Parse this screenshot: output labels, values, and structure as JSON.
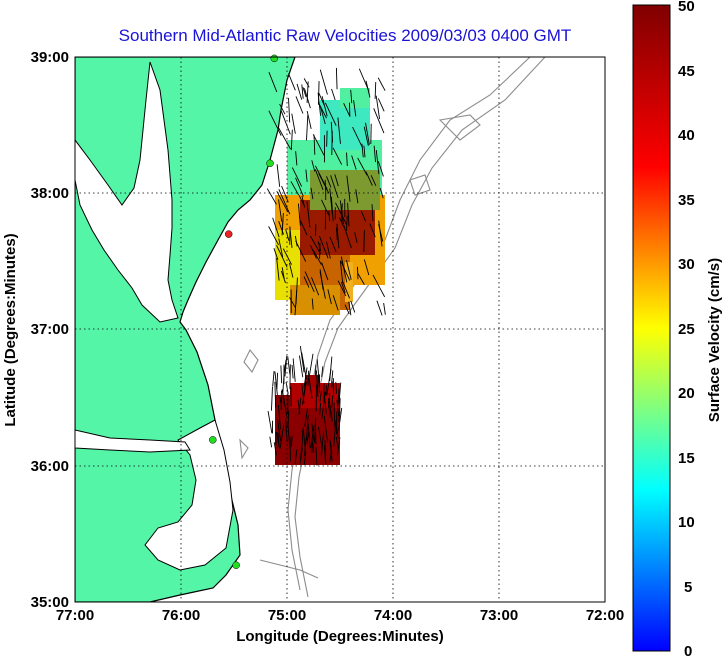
{
  "title": "Southern Mid-Atlantic Raw Velocities 2009/03/03 0400 GMT",
  "xlabel": "Longitude (Degrees:Minutes)",
  "ylabel": "Latitude (Degrees:Minutes)",
  "colorbar_label": "Surface Velocity (cm/s)",
  "x_ticks": [
    "77:00",
    "76:00",
    "75:00",
    "74:00",
    "73:00",
    "72:00"
  ],
  "y_ticks": [
    "39:00",
    "38:00",
    "37:00",
    "36:00",
    "35:00"
  ],
  "colorbar_ticks": [
    "0",
    "5",
    "10",
    "15",
    "20",
    "25",
    "30",
    "35",
    "40",
    "45",
    "50"
  ],
  "colors": {
    "land": "#55f5a8",
    "coast_line": "#000000",
    "bathymetry": "#8c8c8c",
    "station_green": "#22dd22",
    "station_red": "#ee2222"
  },
  "chart_data": {
    "type": "heatmap",
    "title": "Southern Mid-Atlantic Raw Velocities 2009/03/03 0400 GMT",
    "xlabel": "Longitude (Degrees:Minutes)",
    "ylabel": "Latitude (Degrees:Minutes)",
    "xlim": [
      -77.0,
      -72.0
    ],
    "ylim": [
      35.0,
      39.0
    ],
    "color_range": [
      0,
      50
    ],
    "color_units": "cm/s",
    "grid": true,
    "stations": [
      {
        "lon": -75.12,
        "lat": 38.99,
        "color": "green"
      },
      {
        "lon": -75.16,
        "lat": 38.22,
        "color": "green"
      },
      {
        "lon": -75.55,
        "lat": 37.7,
        "color": "red"
      },
      {
        "lon": -75.7,
        "lat": 36.19,
        "color": "green"
      },
      {
        "lon": -75.48,
        "lat": 35.27,
        "color": "green"
      }
    ],
    "velocity_regions": [
      {
        "name": "northern_field",
        "lon_range": [
          -75.1,
          -74.05
        ],
        "lat_range": [
          37.1,
          38.78
        ],
        "peak_speed": 48,
        "mean_speed": 30
      },
      {
        "name": "southern_field",
        "lon_range": [
          -75.15,
          -74.5
        ],
        "lat_range": [
          36.0,
          36.7
        ],
        "peak_speed": 50,
        "mean_speed": 46
      }
    ]
  }
}
